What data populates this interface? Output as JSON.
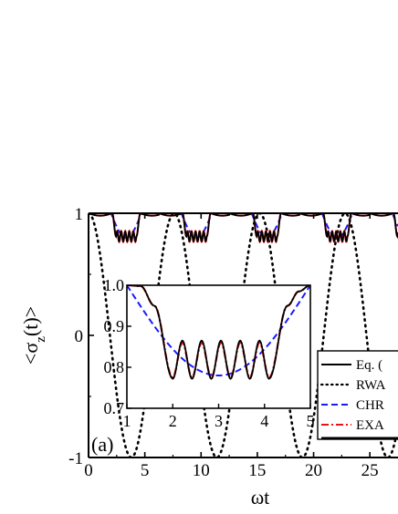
{
  "chart_data": [
    {
      "type": "line",
      "panel_label": "(a)",
      "xlabel": "ωt",
      "ylabel": "<σz(t)>",
      "xlim": [
        0,
        27.5
      ],
      "ylim": [
        -1,
        1
      ],
      "x_ticks": [
        "0",
        "5",
        "10",
        "15",
        "20",
        "25"
      ],
      "y_ticks": [
        "-1",
        "0",
        "1"
      ],
      "legend": {
        "placement": "bottom-right",
        "entries": [
          "Eq. (",
          "RWA",
          "CHR",
          "EXA"
        ]
      },
      "series": [
        {
          "name": "Eq. (",
          "color": "#000000",
          "style": "solid",
          "description_points": {
            "x": [
              0,
              2.3,
              2.6,
              3,
              4,
              4.6,
              5,
              6,
              7,
              8,
              9,
              9.3,
              9.7
            ],
            "y": [
              1,
              0.98,
              0.8,
              0.82,
              0.8,
              0.78,
              0.98,
              1,
              1,
              1,
              0.98,
              0.8,
              0.82
            ]
          }
        },
        {
          "name": "RWA",
          "color": "#000000",
          "style": "dotted",
          "x": [
            0,
            1.9,
            3.8,
            5.7,
            7.6,
            9.5,
            11.4,
            13.3,
            15.2,
            17.1,
            19.0,
            20.9,
            22.8,
            24.7,
            26.6
          ],
          "y": [
            1,
            -0.05,
            -1,
            0,
            1,
            0,
            -1,
            0,
            1,
            0,
            -1,
            0,
            1,
            0,
            -1
          ]
        },
        {
          "name": "CHR",
          "color": "#1a1aff",
          "style": "dashed"
        },
        {
          "name": "EXA",
          "color": "#ee1111",
          "style": "dashdot"
        }
      ],
      "period": 6.25
    },
    {
      "type": "line",
      "role": "inset",
      "xlim": [
        1,
        5
      ],
      "ylim": [
        0.7,
        1.0
      ],
      "x_ticks": [
        "1",
        "2",
        "3",
        "4",
        "5"
      ],
      "y_ticks": [
        "0.7",
        "0.8",
        "0.9",
        "1.0"
      ],
      "series": [
        {
          "name": "Eq. (",
          "color": "#000000",
          "style": "solid",
          "dips": [
            2.0,
            2.42,
            2.84,
            3.26,
            3.68,
            4.1
          ],
          "peaks": [
            2.21,
            2.63,
            3.05,
            3.47,
            3.89
          ],
          "dip_value": 0.772,
          "peak_value": 0.865
        },
        {
          "name": "CHR",
          "color": "#1a1aff",
          "style": "dashed",
          "min_x": 3.05,
          "min_y": 0.78
        },
        {
          "name": "EXA",
          "color": "#ee1111",
          "style": "dashdot",
          "dips": [
            2.0,
            2.42,
            2.84,
            3.26,
            3.68,
            4.1
          ],
          "peaks": [
            2.21,
            2.63,
            3.05,
            3.47,
            3.89
          ],
          "dip_value": 0.775,
          "peak_value": 0.86
        }
      ]
    }
  ]
}
